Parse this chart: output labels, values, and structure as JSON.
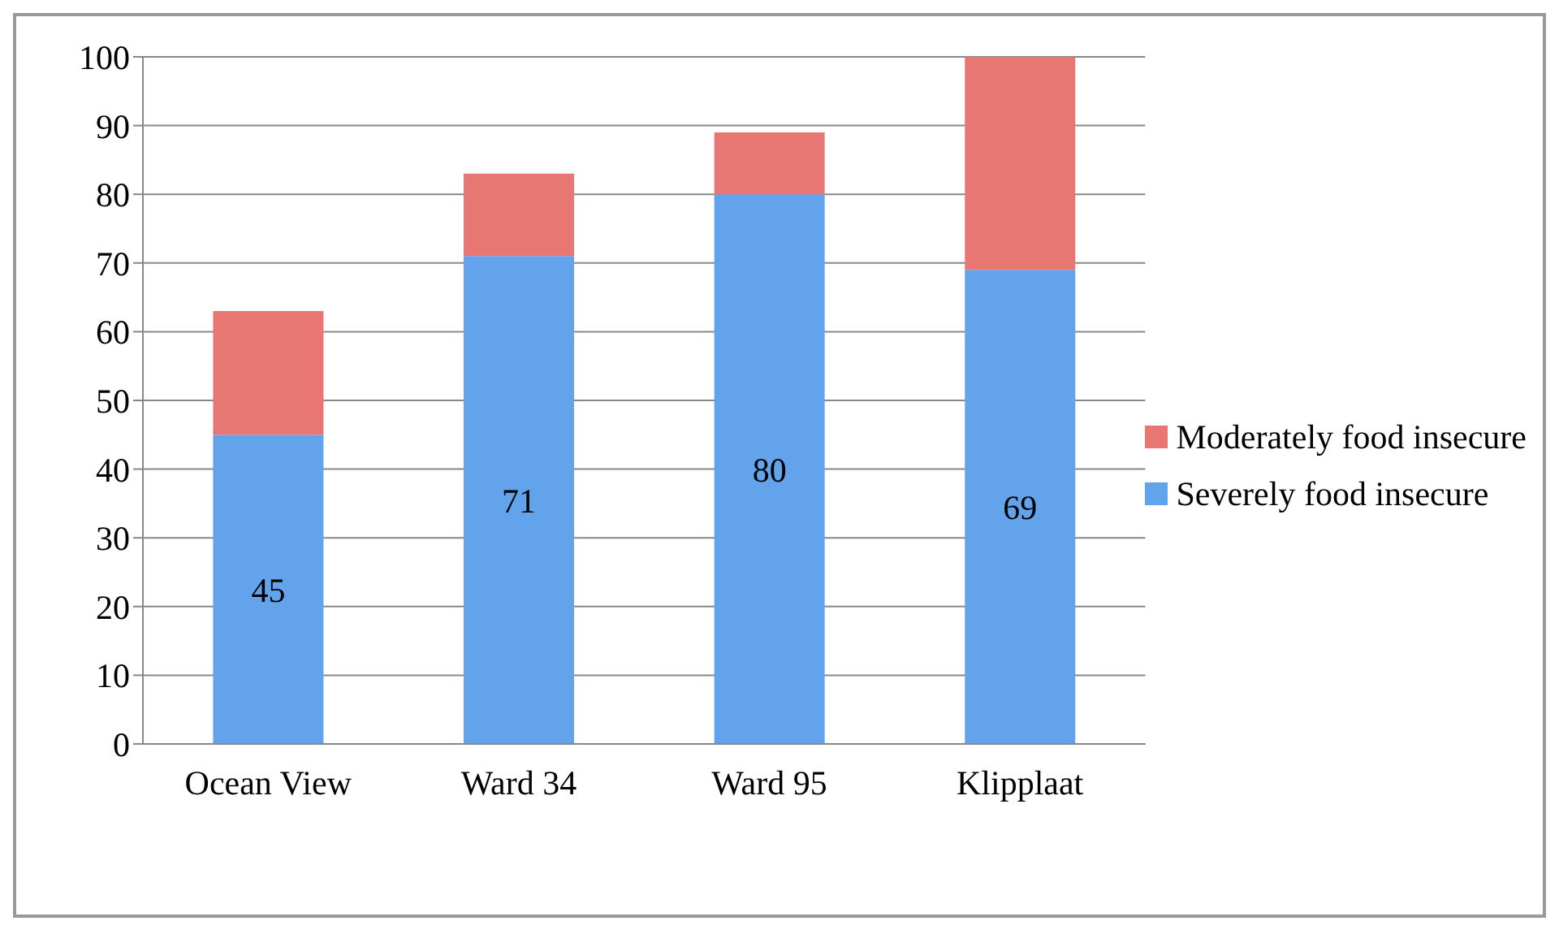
{
  "chart_data": {
    "type": "bar",
    "stacked": true,
    "categories": [
      "Ocean View",
      "Ward 34",
      "Ward 95",
      "Klipplaat"
    ],
    "series": [
      {
        "name": "Severely food insecure",
        "color": "#62a3ec",
        "values": [
          45,
          71,
          80,
          69
        ],
        "value_labels": [
          "45",
          "71",
          "80",
          "69"
        ]
      },
      {
        "name": "Moderately food insecure",
        "color": "#e87673",
        "values": [
          18,
          12,
          9,
          31
        ]
      }
    ],
    "ylim": [
      0,
      100
    ],
    "yticks": [
      0,
      10,
      20,
      30,
      40,
      50,
      60,
      70,
      80,
      90,
      100
    ],
    "grid": "y",
    "legend": "right"
  }
}
